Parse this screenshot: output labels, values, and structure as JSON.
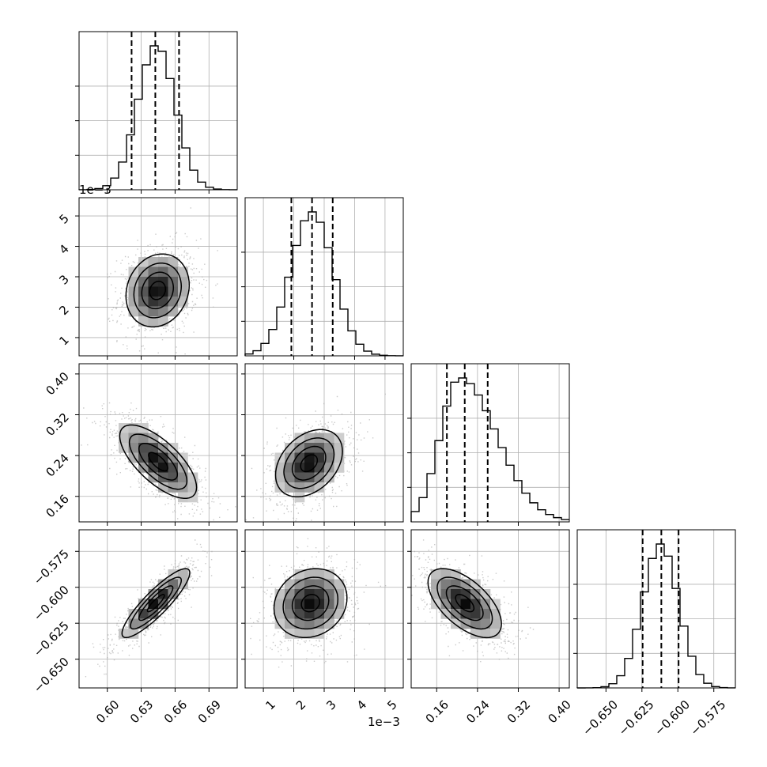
{
  "chart_data": {
    "type": "corner",
    "n_params": 4,
    "parameters": [
      {
        "range": [
          0.575,
          0.715
        ],
        "ticks": [
          0.6,
          0.63,
          0.66,
          0.69
        ],
        "tick_labels": [
          "0.60",
          "0.63",
          "0.66",
          "0.69"
        ],
        "scale_label": "",
        "quantiles": [
          0.6215,
          0.6425,
          0.6635
        ],
        "peak": 0.6435,
        "sigma": 0.0165
      },
      {
        "range": [
          0.4,
          5.6
        ],
        "ticks": [
          1,
          2,
          3,
          4,
          5
        ],
        "tick_labels": [
          "1",
          "2",
          "3",
          "4",
          "5"
        ],
        "scale_label": "1e−3",
        "quantiles": [
          1.92,
          2.6,
          3.28
        ],
        "peak": 2.6,
        "sigma": 0.7
      },
      {
        "range": [
          0.11,
          0.42
        ],
        "ticks": [
          0.16,
          0.24,
          0.32,
          0.4
        ],
        "tick_labels": [
          "0.16",
          "0.24",
          "0.32",
          "0.40"
        ],
        "scale_label": "",
        "quantiles": [
          0.18,
          0.215,
          0.26
        ],
        "peak": 0.205,
        "sigma": 0.038
      },
      {
        "range": [
          -0.67,
          -0.56
        ],
        "ticks": [
          -0.65,
          -0.625,
          -0.6,
          -0.575
        ],
        "tick_labels": [
          "−0.650",
          "−0.625",
          "−0.600",
          "−0.575"
        ],
        "scale_label": "",
        "quantiles": [
          -0.6245,
          -0.6115,
          -0.5995
        ],
        "peak": -0.612,
        "sigma": 0.0125
      }
    ],
    "pairs": [
      {
        "row": 1,
        "col": 0,
        "center": [
          0.6445,
          2.55
        ],
        "spread": [
          0.014,
          0.6
        ],
        "rho": 0.15
      },
      {
        "row": 2,
        "col": 0,
        "center": [
          0.645,
          0.228
        ],
        "spread": [
          0.017,
          0.036
        ],
        "rho": -0.7
      },
      {
        "row": 2,
        "col": 1,
        "center": [
          2.5,
          0.225
        ],
        "spread": [
          0.55,
          0.033
        ],
        "rho": 0.35
      },
      {
        "row": 3,
        "col": 0,
        "center": [
          0.643,
          -0.611
        ],
        "spread": [
          0.015,
          0.012
        ],
        "rho": 0.88
      },
      {
        "row": 3,
        "col": 1,
        "center": [
          2.55,
          -0.611
        ],
        "spread": [
          0.6,
          0.012
        ],
        "rho": 0.15
      },
      {
        "row": 3,
        "col": 2,
        "center": [
          0.215,
          -0.611
        ],
        "spread": [
          0.036,
          0.012
        ],
        "rho": -0.6
      }
    ],
    "grid": true,
    "xlabel": "",
    "ylabel": ""
  }
}
